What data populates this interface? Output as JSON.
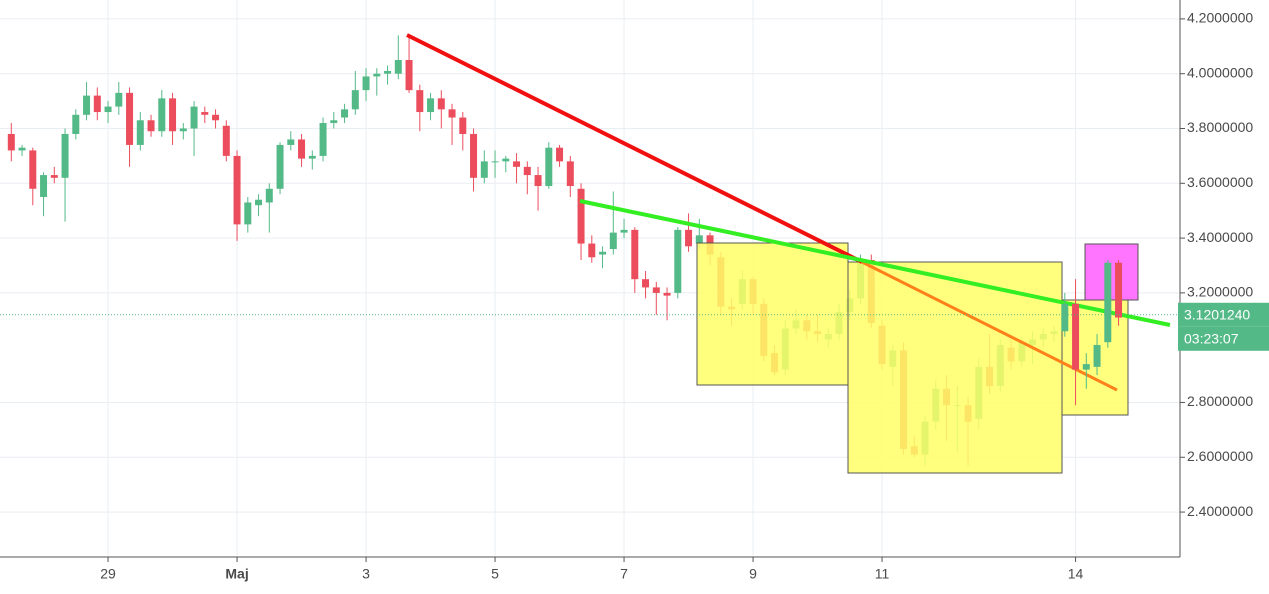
{
  "chart_data": {
    "type": "candlestick",
    "categories": [
      null,
      null,
      null,
      null,
      null,
      null,
      null,
      null,
      null,
      "29",
      null,
      null,
      null,
      null,
      null,
      null,
      null,
      null,
      null,
      null,
      null,
      "Maj",
      null,
      null,
      null,
      null,
      null,
      null,
      null,
      null,
      null,
      null,
      null,
      "3",
      null,
      null,
      null,
      null,
      null,
      null,
      null,
      null,
      null,
      null,
      null,
      "5",
      null,
      null,
      null,
      null,
      null,
      null,
      null,
      null,
      null,
      null,
      null,
      "7",
      null,
      null,
      null,
      null,
      null,
      null,
      null,
      null,
      null,
      null,
      null,
      "9",
      null,
      null,
      null,
      null,
      null,
      null,
      null,
      null,
      null,
      null,
      null,
      "11",
      null,
      null,
      null,
      null,
      null,
      null,
      null,
      null,
      null,
      null,
      null,
      null,
      null,
      null,
      null,
      null,
      null,
      "14",
      null,
      null,
      null,
      null
    ],
    "ohlc": [
      [
        3.78,
        3.82,
        3.68,
        3.72
      ],
      [
        3.72,
        3.74,
        3.7,
        3.73
      ],
      [
        3.72,
        3.73,
        3.52,
        3.58
      ],
      [
        3.55,
        3.64,
        3.48,
        3.63
      ],
      [
        3.63,
        3.66,
        3.6,
        3.62
      ],
      [
        3.62,
        3.8,
        3.46,
        3.78
      ],
      [
        3.78,
        3.87,
        3.76,
        3.85
      ],
      [
        3.85,
        3.97,
        3.83,
        3.92
      ],
      [
        3.92,
        3.95,
        3.83,
        3.86
      ],
      [
        3.86,
        3.9,
        3.82,
        3.88
      ],
      [
        3.88,
        3.97,
        3.85,
        3.93
      ],
      [
        3.93,
        3.95,
        3.66,
        3.74
      ],
      [
        3.74,
        3.86,
        3.72,
        3.83
      ],
      [
        3.83,
        3.85,
        3.77,
        3.79
      ],
      [
        3.79,
        3.94,
        3.77,
        3.91
      ],
      [
        3.91,
        3.93,
        3.74,
        3.79
      ],
      [
        3.79,
        3.82,
        3.76,
        3.8
      ],
      [
        3.8,
        3.9,
        3.7,
        3.88
      ],
      [
        3.86,
        3.88,
        3.82,
        3.85
      ],
      [
        3.85,
        3.87,
        3.8,
        3.83
      ],
      [
        3.81,
        3.83,
        3.68,
        3.7
      ],
      [
        3.7,
        3.72,
        3.39,
        3.45
      ],
      [
        3.45,
        3.55,
        3.42,
        3.53
      ],
      [
        3.52,
        3.56,
        3.48,
        3.54
      ],
      [
        3.53,
        3.6,
        3.42,
        3.58
      ],
      [
        3.58,
        3.75,
        3.56,
        3.74
      ],
      [
        3.74,
        3.79,
        3.72,
        3.76
      ],
      [
        3.76,
        3.78,
        3.66,
        3.69
      ],
      [
        3.69,
        3.72,
        3.65,
        3.7
      ],
      [
        3.7,
        3.84,
        3.68,
        3.82
      ],
      [
        3.82,
        3.86,
        3.8,
        3.83
      ],
      [
        3.84,
        3.89,
        3.82,
        3.87
      ],
      [
        3.87,
        4.01,
        3.85,
        3.94
      ],
      [
        3.94,
        4.02,
        3.9,
        3.99
      ],
      [
        3.99,
        4.02,
        3.92,
        4.0
      ],
      [
        4.0,
        4.03,
        3.96,
        4.01
      ],
      [
        4.0,
        4.14,
        3.98,
        4.05
      ],
      [
        4.05,
        4.14,
        3.93,
        3.94
      ],
      [
        3.94,
        3.96,
        3.79,
        3.86
      ],
      [
        3.86,
        3.93,
        3.83,
        3.91
      ],
      [
        3.91,
        3.94,
        3.8,
        3.87
      ],
      [
        3.87,
        3.89,
        3.74,
        3.84
      ],
      [
        3.84,
        3.86,
        3.72,
        3.78
      ],
      [
        3.78,
        3.8,
        3.57,
        3.62
      ],
      [
        3.62,
        3.72,
        3.6,
        3.68
      ],
      [
        3.68,
        3.72,
        3.62,
        3.68
      ],
      [
        3.68,
        3.7,
        3.64,
        3.69
      ],
      [
        3.68,
        3.71,
        3.6,
        3.66
      ],
      [
        3.66,
        3.68,
        3.56,
        3.63
      ],
      [
        3.63,
        3.66,
        3.5,
        3.59
      ],
      [
        3.59,
        3.75,
        3.58,
        3.73
      ],
      [
        3.73,
        3.74,
        3.66,
        3.68
      ],
      [
        3.68,
        3.7,
        3.55,
        3.59
      ],
      [
        3.58,
        3.6,
        3.32,
        3.38
      ],
      [
        3.38,
        3.41,
        3.31,
        3.33
      ],
      [
        3.34,
        3.37,
        3.29,
        3.35
      ],
      [
        3.36,
        3.57,
        3.34,
        3.42
      ],
      [
        3.42,
        3.47,
        3.4,
        3.43
      ],
      [
        3.43,
        3.44,
        3.2,
        3.25
      ],
      [
        3.25,
        3.28,
        3.18,
        3.22
      ],
      [
        3.22,
        3.24,
        3.12,
        3.2
      ],
      [
        3.2,
        3.22,
        3.1,
        3.19
      ],
      [
        3.2,
        3.44,
        3.18,
        3.43
      ],
      [
        3.43,
        3.49,
        3.35,
        3.37
      ],
      [
        3.38,
        3.47,
        3.36,
        3.41
      ],
      [
        3.41,
        3.42,
        3.3,
        3.34
      ],
      [
        3.33,
        3.35,
        3.12,
        3.15
      ],
      [
        3.15,
        3.18,
        3.08,
        3.14
      ],
      [
        3.16,
        3.28,
        3.14,
        3.25
      ],
      [
        3.25,
        3.26,
        3.12,
        3.16
      ],
      [
        3.16,
        3.18,
        2.95,
        2.97
      ],
      [
        2.98,
        3.01,
        2.9,
        2.91
      ],
      [
        2.92,
        3.1,
        2.9,
        3.07
      ],
      [
        3.07,
        3.14,
        3.05,
        3.1
      ],
      [
        3.1,
        3.12,
        3.03,
        3.06
      ],
      [
        3.06,
        3.12,
        3.02,
        3.05
      ],
      [
        3.03,
        3.07,
        3.0,
        3.05
      ],
      [
        3.05,
        3.16,
        3.03,
        3.13
      ],
      [
        3.13,
        3.21,
        3.1,
        3.18
      ],
      [
        3.18,
        3.34,
        3.16,
        3.32
      ],
      [
        3.32,
        3.34,
        3.07,
        3.09
      ],
      [
        3.08,
        3.1,
        2.92,
        2.94
      ],
      [
        2.93,
        3.01,
        2.86,
        2.99
      ],
      [
        2.99,
        3.02,
        2.61,
        2.63
      ],
      [
        2.64,
        2.68,
        2.6,
        2.61
      ],
      [
        2.61,
        2.75,
        2.57,
        2.73
      ],
      [
        2.73,
        2.88,
        2.7,
        2.85
      ],
      [
        2.85,
        2.9,
        2.66,
        2.79
      ],
      [
        2.79,
        2.86,
        2.62,
        2.79
      ],
      [
        2.79,
        2.82,
        2.57,
        2.73
      ],
      [
        2.74,
        2.96,
        2.7,
        2.93
      ],
      [
        2.93,
        3.05,
        2.83,
        2.86
      ],
      [
        2.86,
        3.03,
        2.84,
        3.01
      ],
      [
        3.0,
        3.03,
        2.92,
        2.95
      ],
      [
        2.95,
        3.04,
        2.93,
        3.02
      ],
      [
        3.01,
        3.06,
        2.94,
        3.03
      ],
      [
        3.03,
        3.07,
        3.0,
        3.05
      ],
      [
        3.05,
        3.08,
        3.02,
        3.06
      ],
      [
        3.06,
        3.2,
        3.04,
        3.16
      ],
      [
        3.16,
        3.25,
        2.79,
        2.92
      ],
      [
        2.92,
        2.98,
        2.85,
        2.94
      ],
      [
        2.93,
        3.05,
        2.9,
        3.01
      ],
      [
        3.02,
        3.32,
        3.0,
        3.31
      ],
      [
        3.31,
        3.32,
        3.08,
        3.11
      ]
    ],
    "up_color": "#53b987",
    "down_color": "#eb4d5c",
    "ylim": [
      2.236,
      4.269
    ],
    "yticks": [
      {
        "value": 2.4,
        "label": "2.4000000"
      },
      {
        "value": 2.6,
        "label": "2.6000000"
      },
      {
        "value": 2.8,
        "label": "2.8000000"
      },
      {
        "value": 3.2,
        "label": "3.2000000"
      },
      {
        "value": 3.4,
        "label": "3.4000000"
      },
      {
        "value": 3.6,
        "label": "3.6000000"
      },
      {
        "value": 3.8,
        "label": "3.8000000"
      },
      {
        "value": 4.0,
        "label": "4.0000000"
      },
      {
        "value": 4.2,
        "label": "4.2000000"
      }
    ],
    "last_price": {
      "value": 3.120124,
      "label": "3.1201240"
    },
    "timer": "03:23:07",
    "grid": true
  }
}
